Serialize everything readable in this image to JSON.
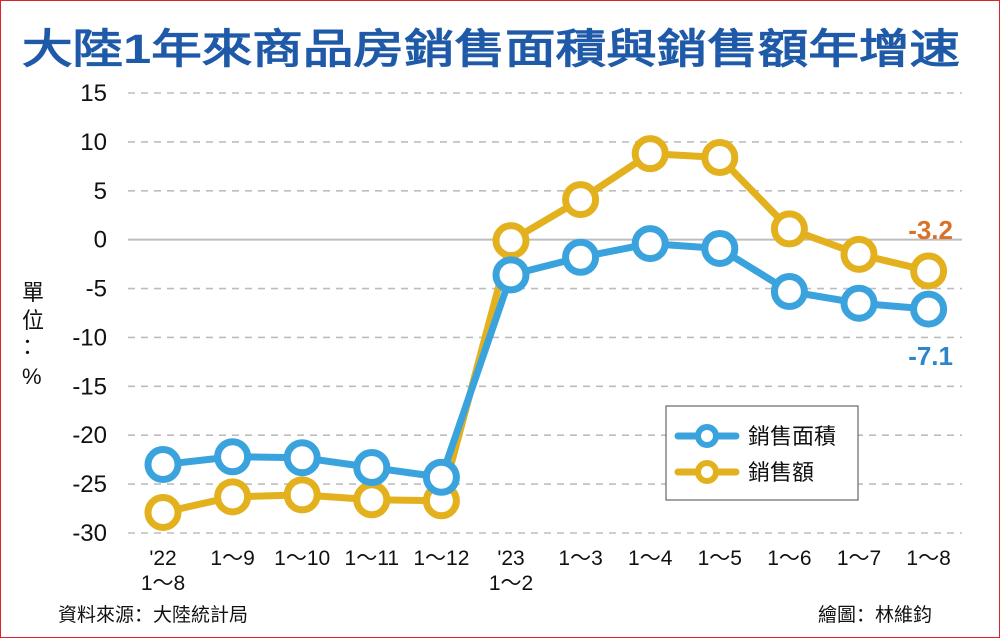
{
  "title": "大陸1年來商品房銷售面積與銷售額年增速",
  "unit_label": [
    "單",
    "位",
    "：",
    "%"
  ],
  "source": "資料來源：大陸統計局",
  "credit": "繪圖：林維鈞",
  "colors": {
    "title": "#1f5aa8",
    "area": "#3aa3de",
    "sales": "#e2b11d",
    "label_sales": "#d9712a",
    "label_area": "#2c86c8",
    "grid": "#bdbdbd",
    "border": "#d9252a"
  },
  "chart_data": {
    "type": "line",
    "categories": [
      [
        "'22",
        "1～8"
      ],
      [
        "1～9"
      ],
      [
        "1～10"
      ],
      [
        "1～11"
      ],
      [
        "1～12"
      ],
      [
        "'23",
        "1～2"
      ],
      [
        "1～3"
      ],
      [
        "1～4"
      ],
      [
        "1～5"
      ],
      [
        "1～6"
      ],
      [
        "1～7"
      ],
      [
        "1～8"
      ]
    ],
    "series": [
      {
        "name": "銷售面積",
        "color": "#3aa3de",
        "values": [
          -23.0,
          -22.2,
          -22.3,
          -23.3,
          -24.3,
          -3.6,
          -1.8,
          -0.4,
          -0.9,
          -5.3,
          -6.5,
          -7.1
        ]
      },
      {
        "name": "銷售額",
        "color": "#e2b11d",
        "values": [
          -27.9,
          -26.3,
          -26.1,
          -26.6,
          -26.7,
          -0.1,
          4.1,
          8.8,
          8.4,
          1.1,
          -1.5,
          -3.2
        ]
      }
    ],
    "ylim": [
      -30,
      15
    ],
    "yticks": [
      15,
      10,
      5,
      0,
      -5,
      -10,
      -15,
      -20,
      -25,
      -30
    ],
    "grid": true,
    "legend_position": "center-right",
    "annotations": [
      {
        "series": "銷售額",
        "index": 11,
        "text": "-3.2"
      },
      {
        "series": "銷售面積",
        "index": 11,
        "text": "-7.1"
      }
    ]
  }
}
